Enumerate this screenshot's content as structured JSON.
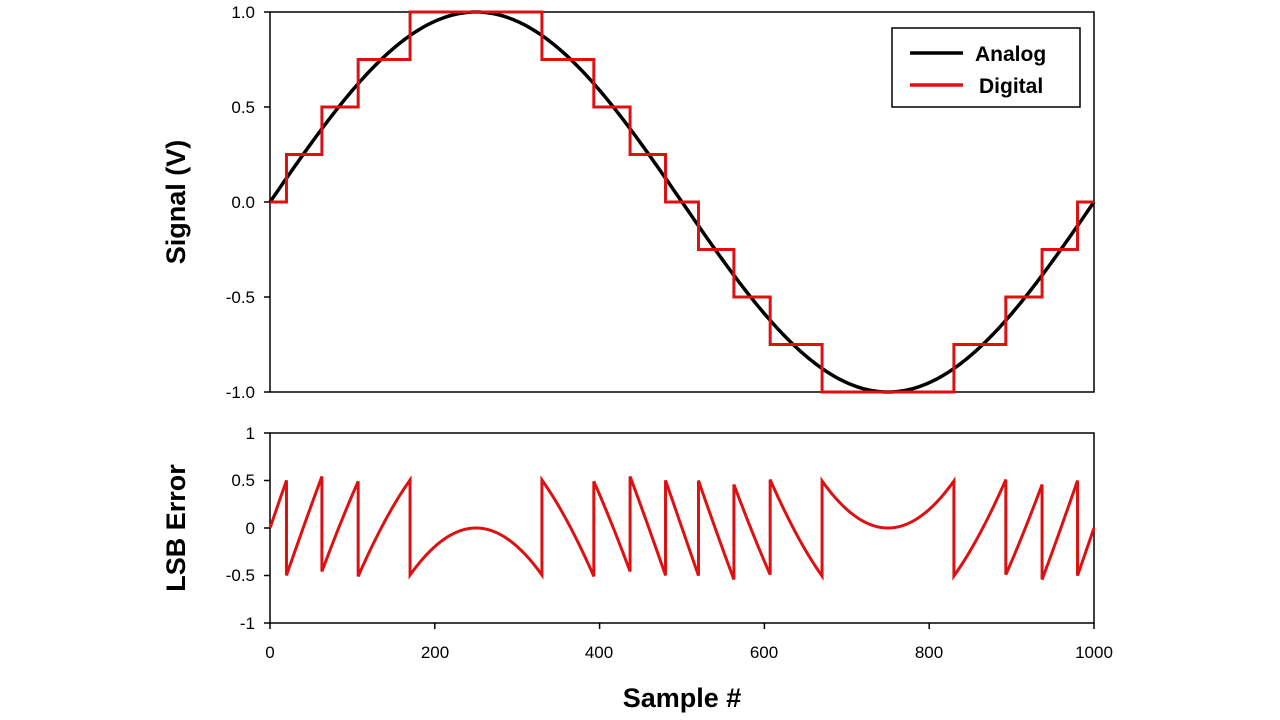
{
  "chart_data": [
    {
      "type": "line",
      "ylabel": "Signal (V)",
      "xlim": [
        0,
        1000
      ],
      "ylim": [
        -1.0,
        1.0
      ],
      "yticks": [
        1.0,
        0.5,
        0.0,
        -0.5,
        -1.0
      ],
      "ytick_labels": [
        "1.0",
        "0.5",
        "0.0",
        "-0.5",
        "-1.0"
      ],
      "grid": false,
      "legend": {
        "position": "top-right"
      },
      "series": [
        {
          "name": "Analog",
          "color": "#000000",
          "function": "sin(2*pi*x/1000)",
          "x_range": [
            0,
            1000
          ]
        },
        {
          "name": "Digital",
          "color": "#dd1111",
          "step": "hv",
          "x": [
            0,
            20,
            63,
            107,
            170,
            330,
            393,
            437,
            480,
            520,
            563,
            607,
            670,
            830,
            893,
            937,
            980,
            1000
          ],
          "y": [
            0,
            0.25,
            0.5,
            0.75,
            1.0,
            0.75,
            0.5,
            0.25,
            0,
            -0.25,
            -0.5,
            -0.75,
            -1.0,
            -0.75,
            -0.5,
            -0.25,
            0,
            0
          ]
        }
      ]
    },
    {
      "type": "line",
      "xlabel": "Sample #",
      "ylabel": "LSB Error",
      "xlim": [
        0,
        1000
      ],
      "ylim": [
        -1,
        1
      ],
      "xticks": [
        0,
        200,
        400,
        600,
        800,
        1000
      ],
      "xtick_labels": [
        "0",
        "200",
        "400",
        "600",
        "800",
        "1000"
      ],
      "yticks": [
        1,
        0.5,
        0,
        -0.5,
        -1
      ],
      "ytick_labels": [
        "1",
        "0.5",
        "0",
        "-0.5",
        "-1"
      ],
      "grid": false,
      "series": [
        {
          "color": "#dd1111",
          "function": "4*sin(2*pi*x/1000) - quantized digital level (LSB = 0.25 V)",
          "x_range": [
            0,
            1000
          ]
        }
      ]
    }
  ]
}
